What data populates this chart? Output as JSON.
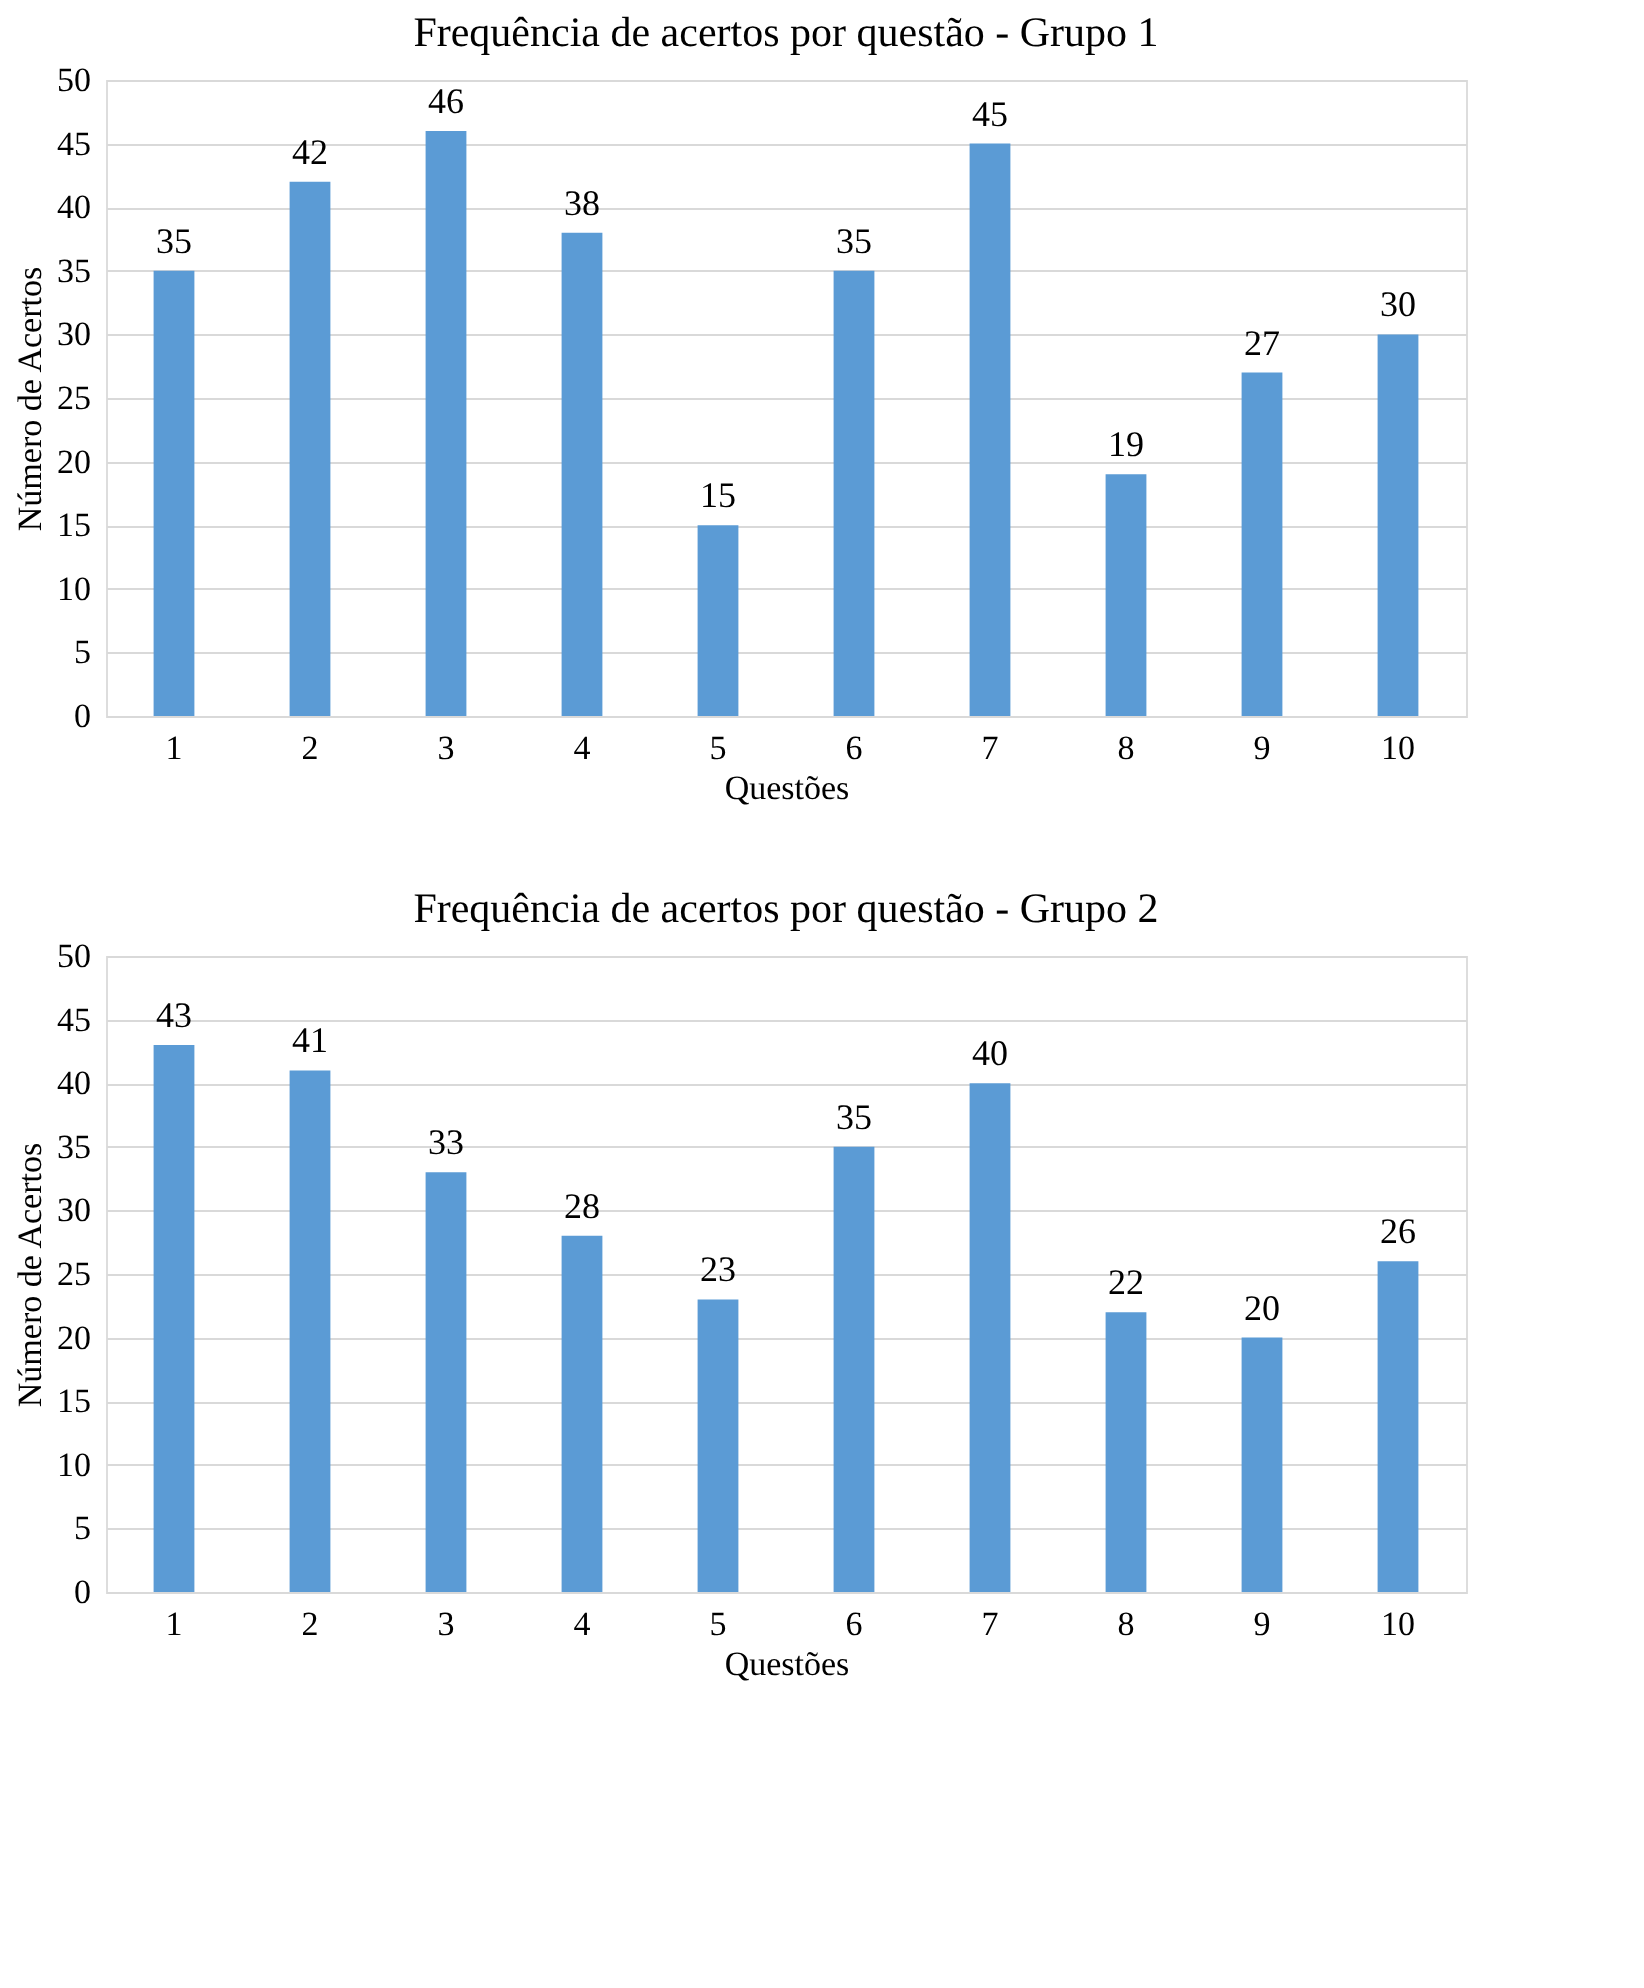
{
  "chart_data": [
    {
      "type": "bar",
      "title": "Frequência de acertos por questão - Grupo 1",
      "xlabel": "Questões",
      "ylabel": "Número de Acertos",
      "categories": [
        "1",
        "2",
        "3",
        "4",
        "5",
        "6",
        "7",
        "8",
        "9",
        "10"
      ],
      "values": [
        35,
        42,
        46,
        38,
        15,
        35,
        45,
        19,
        27,
        30
      ],
      "color": "#5b9bd5",
      "ylim": [
        0,
        50
      ],
      "yticks": [
        0,
        5,
        10,
        15,
        20,
        25,
        30,
        35,
        40,
        45,
        50
      ],
      "grid": "y",
      "data_labels": true
    },
    {
      "type": "bar",
      "title": "Frequência de acertos por questão - Grupo 2",
      "xlabel": "Questões",
      "ylabel": "Número de Acertos",
      "categories": [
        "1",
        "2",
        "3",
        "4",
        "5",
        "6",
        "7",
        "8",
        "9",
        "10"
      ],
      "values": [
        43,
        41,
        33,
        28,
        23,
        35,
        40,
        22,
        20,
        26
      ],
      "color": "#5b9bd5",
      "ylim": [
        0,
        50
      ],
      "yticks": [
        0,
        5,
        10,
        15,
        20,
        25,
        30,
        35,
        40,
        45,
        50
      ],
      "grid": "y",
      "data_labels": true
    }
  ]
}
